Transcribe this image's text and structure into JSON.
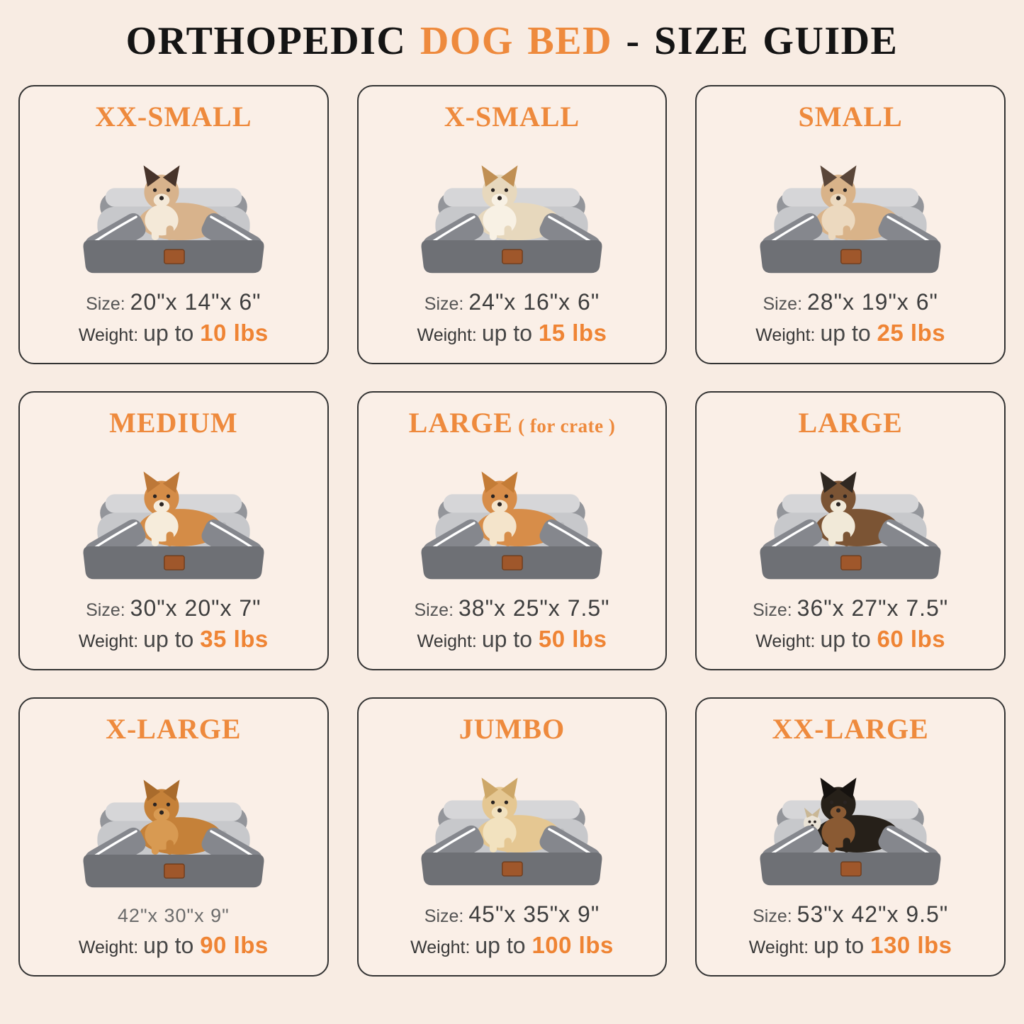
{
  "theme": {
    "background": "#f8ece3",
    "card_background": "#faefe7",
    "card_border": "#333333",
    "accent_orange": "#ee8a3d",
    "weight_orange": "#ef8434",
    "text_dark": "#3e3e3e",
    "text_gray": "#6b6b6b"
  },
  "title": {
    "part1": "ORTHOPEDIC ",
    "highlight": "DOG BED",
    "part2": " - SIZE GUIDE"
  },
  "cards": [
    {
      "name": "XX-SMALL",
      "name_suffix": "",
      "pet": "ragdoll-cat",
      "companion": false,
      "size_label": "Size:",
      "size_value": "20\"x 14\"x 6\"",
      "weight_label": "Weight:",
      "weight_prefix": "up to ",
      "weight_value": "10 lbs",
      "pet_colors": {
        "fur": "#d8b38c",
        "accent": "#f4e9d8",
        "dark": "#46332a"
      }
    },
    {
      "name": "X-SMALL",
      "name_suffix": "",
      "pet": "shih-tzu-puppy",
      "companion": false,
      "size_label": "Size:",
      "size_value": "24\"x 16\"x 6\"",
      "weight_label": "Weight:",
      "weight_prefix": "up to ",
      "weight_value": "15 lbs",
      "pet_colors": {
        "fur": "#e7d8bd",
        "accent": "#f8f1e4",
        "dark": "#c08f53"
      }
    },
    {
      "name": "SMALL",
      "name_suffix": "",
      "pet": "french-bulldog",
      "companion": false,
      "size_label": "Size:",
      "size_value": "28\"x 19\"x 6\"",
      "weight_label": "Weight:",
      "weight_prefix": "up to ",
      "weight_value": "25 lbs",
      "pet_colors": {
        "fur": "#d9b389",
        "accent": "#ecd9bf",
        "dark": "#5a4639"
      }
    },
    {
      "name": "MEDIUM",
      "name_suffix": "",
      "pet": "corgi",
      "companion": false,
      "size_label": "Size:",
      "size_value": "30\"x 20\"x 7\"",
      "weight_label": "Weight:",
      "weight_prefix": "up to ",
      "weight_value": "35 lbs",
      "pet_colors": {
        "fur": "#d48c47",
        "accent": "#f6ecdb",
        "dark": "#bd7838"
      }
    },
    {
      "name": "LARGE",
      "name_suffix": " ( for crate )",
      "pet": "shiba-inu",
      "companion": false,
      "size_label": "Size:",
      "size_value": "38\"x 25\"x 7.5\"",
      "weight_label": "Weight:",
      "weight_prefix": "up to ",
      "weight_value": "50 lbs",
      "pet_colors": {
        "fur": "#d78d49",
        "accent": "#f4e4cb",
        "dark": "#c47c36"
      }
    },
    {
      "name": "LARGE",
      "name_suffix": "",
      "pet": "border-collie",
      "companion": false,
      "size_label": "Size:",
      "size_value": "36\"x 27\"x 7.5\"",
      "weight_label": "Weight:",
      "weight_prefix": "up to ",
      "weight_value": "60 lbs",
      "pet_colors": {
        "fur": "#7b5434",
        "accent": "#f1e9d8",
        "dark": "#2f2822"
      }
    },
    {
      "name": "X-LARGE",
      "name_suffix": "",
      "pet": "golden-retriever",
      "companion": false,
      "size_label": "",
      "size_value": "42\"x 30\"x 9\"",
      "weight_label": "Weight:",
      "weight_prefix": "up to ",
      "weight_value": "90 lbs",
      "pet_colors": {
        "fur": "#c58139",
        "accent": "#d89a52",
        "dark": "#a96b2c"
      }
    },
    {
      "name": "JUMBO",
      "name_suffix": "",
      "pet": "yellow-labrador",
      "companion": false,
      "size_label": "Size:",
      "size_value": "45\"x 35\"x 9\"",
      "weight_label": "Weight:",
      "weight_prefix": "up to ",
      "weight_value": "100 lbs",
      "pet_colors": {
        "fur": "#e5c792",
        "accent": "#f2e2bf",
        "dark": "#cda768"
      }
    },
    {
      "name": "XX-LARGE",
      "name_suffix": "",
      "pet": "rottweiler-with-chihuahua",
      "companion": true,
      "size_label": "Size:",
      "size_value": "53\"x 42\"x 9.5\"",
      "weight_label": "Weight:",
      "weight_prefix": "up to ",
      "weight_value": "130 lbs",
      "pet_colors": {
        "fur": "#262019",
        "accent": "#8a5a33",
        "dark": "#16120f"
      }
    }
  ]
}
